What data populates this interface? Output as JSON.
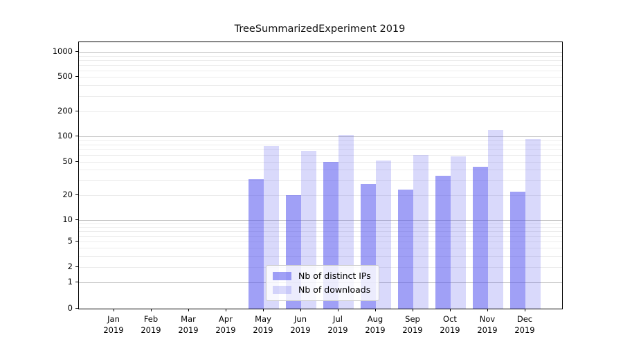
{
  "chart_data": {
    "type": "bar",
    "title": "TreeSummarizedExperiment 2019",
    "x_labels": [
      {
        "month": "Jan",
        "year": "2019"
      },
      {
        "month": "Feb",
        "year": "2019"
      },
      {
        "month": "Mar",
        "year": "2019"
      },
      {
        "month": "Apr",
        "year": "2019"
      },
      {
        "month": "May",
        "year": "2019"
      },
      {
        "month": "Jun",
        "year": "2019"
      },
      {
        "month": "Jul",
        "year": "2019"
      },
      {
        "month": "Aug",
        "year": "2019"
      },
      {
        "month": "Sep",
        "year": "2019"
      },
      {
        "month": "Oct",
        "year": "2019"
      },
      {
        "month": "Nov",
        "year": "2019"
      },
      {
        "month": "Dec",
        "year": "2019"
      }
    ],
    "series": [
      {
        "name": "Nb of distinct IPs",
        "color": "rgba(82,82,238,0.55)",
        "values": [
          0,
          0,
          0,
          0,
          31,
          20,
          50,
          27,
          23,
          34,
          43,
          22
        ]
      },
      {
        "name": "Nb of downloads",
        "color": "rgba(82,82,238,0.22)",
        "values": [
          0,
          0,
          0,
          0,
          77,
          67,
          103,
          51,
          60,
          58,
          118,
          92
        ]
      }
    ],
    "yscale": "symlog",
    "yticks": [
      0,
      1,
      2,
      5,
      10,
      20,
      50,
      100,
      200,
      500,
      1000
    ],
    "ylim": [
      0,
      1300
    ],
    "grid": true,
    "legend_position": "lower center"
  },
  "colors": {
    "major_grid": "#c3c3c3",
    "minor_grid": "#ececec",
    "axis": "#000000",
    "background": "#ffffff"
  }
}
